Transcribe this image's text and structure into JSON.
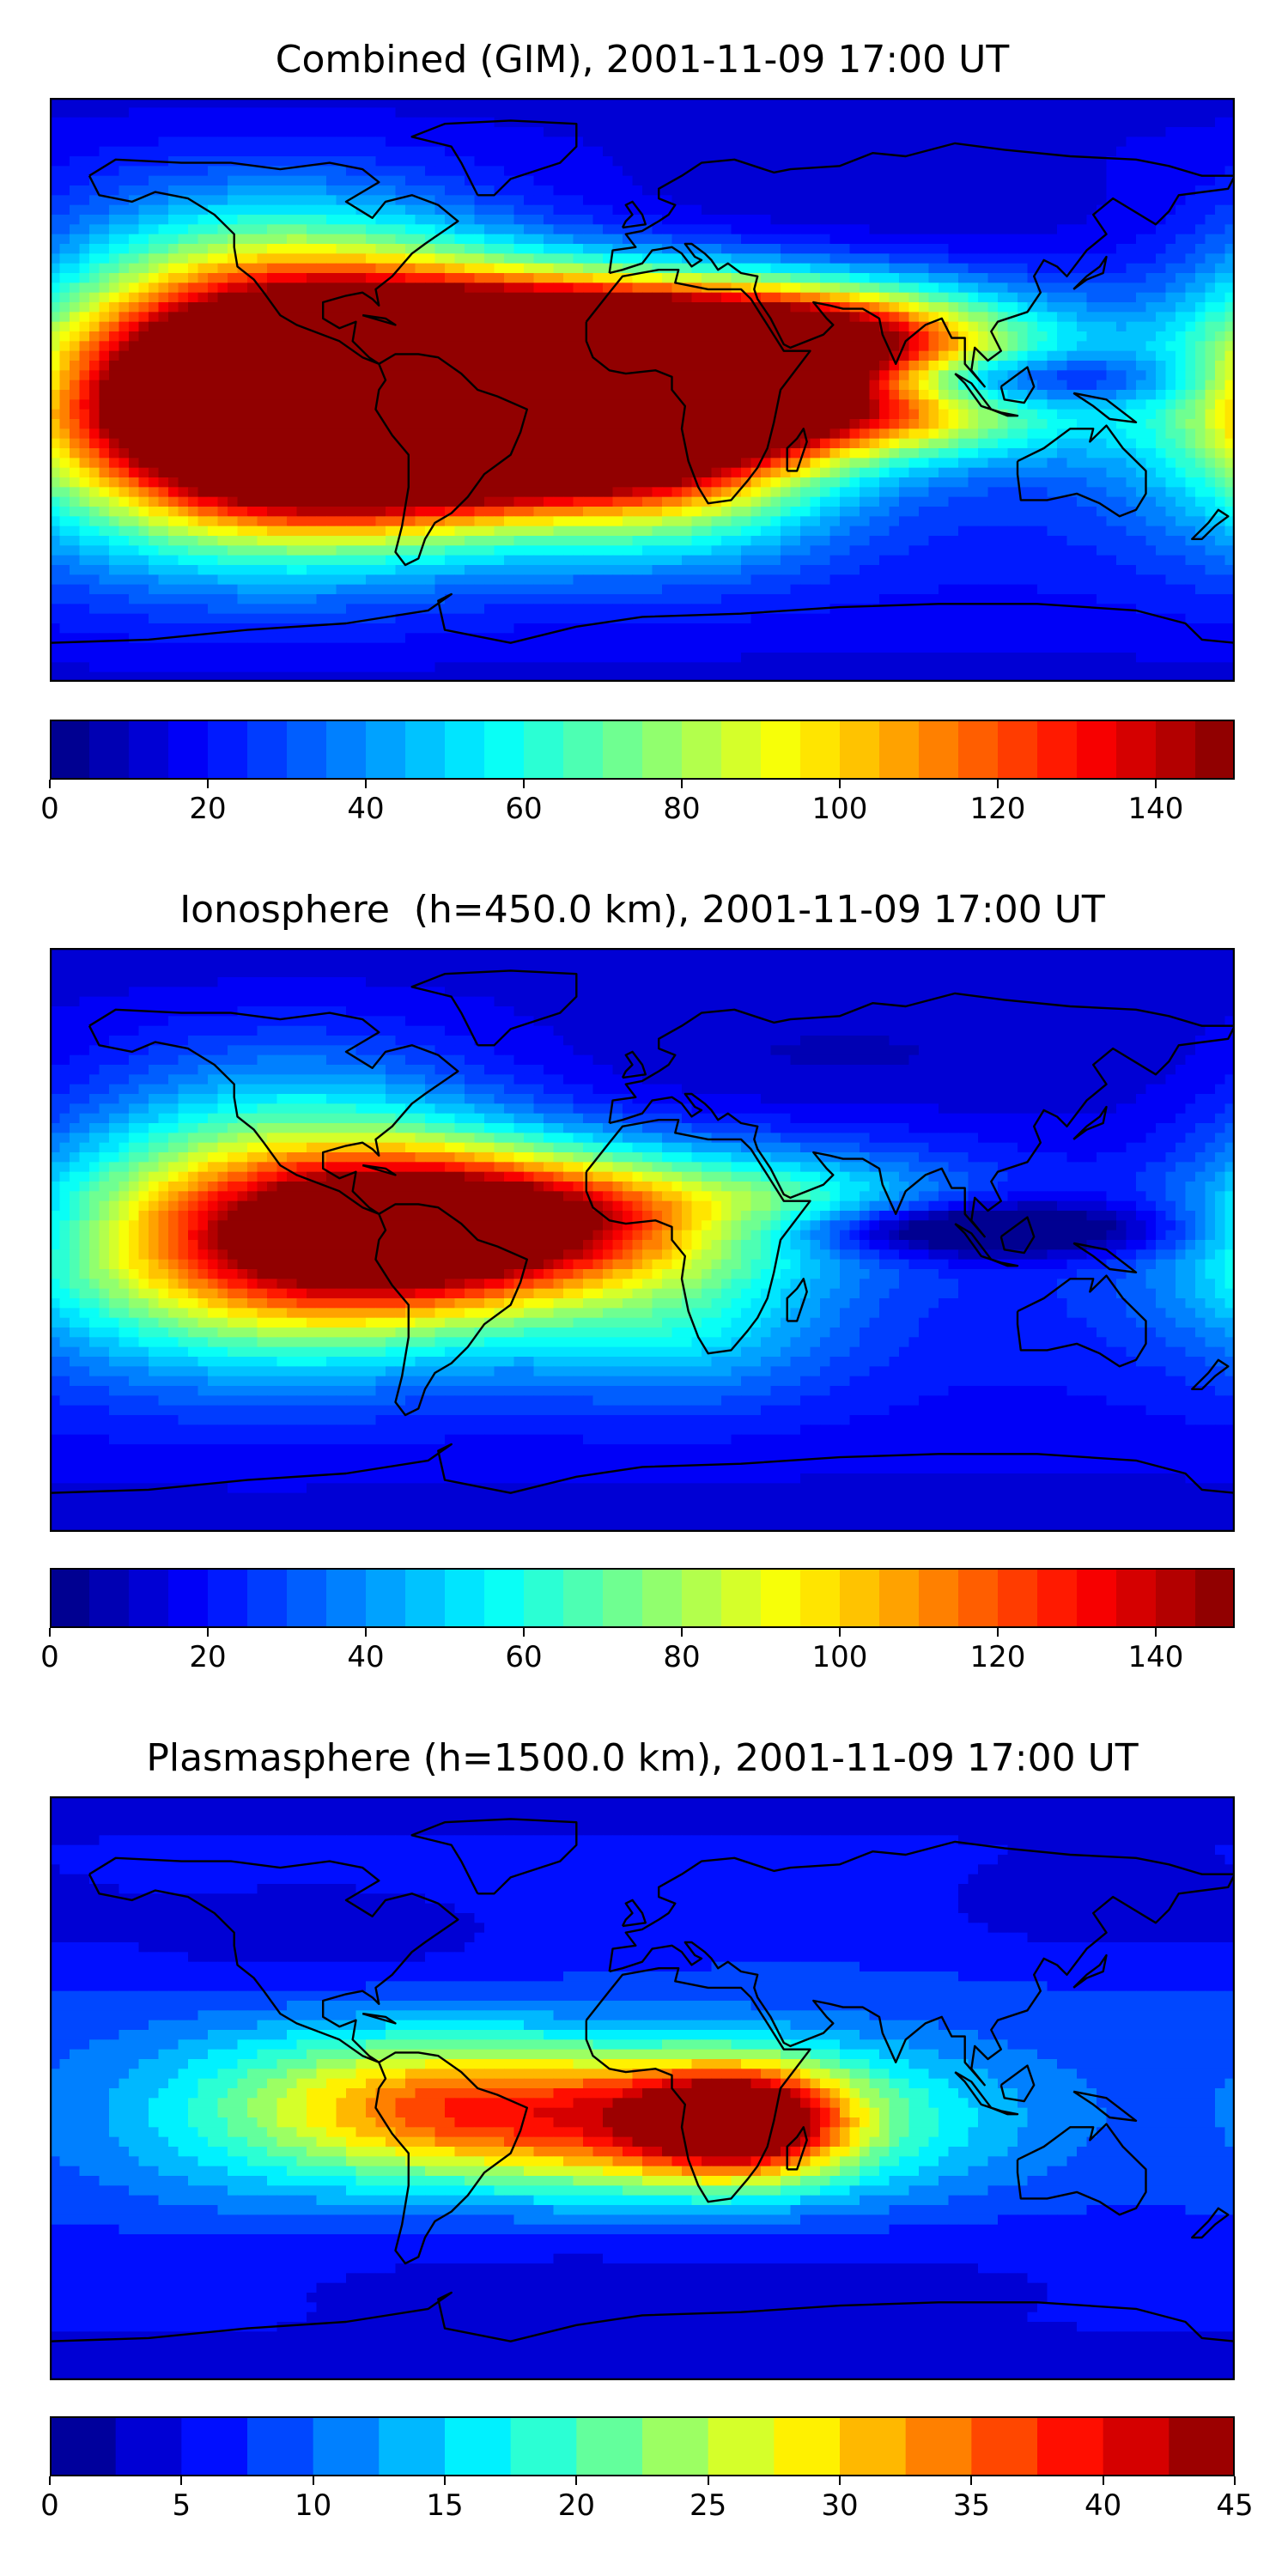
{
  "chart_data": [
    {
      "type": "heatmap",
      "title": "Combined (GIM), 2001-11-09 17:00 UT",
      "colormap": "jet",
      "colorbar": {
        "range": [
          0,
          150
        ],
        "levels": 30,
        "ticks": [
          0,
          20,
          40,
          60,
          80,
          100,
          120,
          140
        ],
        "tick_labels": [
          "0",
          "20",
          "40",
          "60",
          "80",
          "100",
          "120",
          "140"
        ]
      },
      "lon_range": [
        -180,
        180
      ],
      "lat_range": [
        -90,
        90
      ],
      "background_level": 25,
      "features": [
        {
          "lon": -75,
          "lat": -5,
          "value": 140,
          "slon": 45,
          "slat": 22
        },
        {
          "lon": -50,
          "lat": -2,
          "value": 115,
          "slon": 55,
          "slat": 20
        },
        {
          "lon": -20,
          "lat": 5,
          "value": 110,
          "slon": 40,
          "slat": 18
        },
        {
          "lon": 0,
          "lat": 4,
          "value": 80,
          "slon": 38,
          "slat": 16
        },
        {
          "lon": -105,
          "lat": -5,
          "value": 95,
          "slon": 45,
          "slat": 30
        },
        {
          "lon": -140,
          "lat": 0,
          "value": 60,
          "slon": 45,
          "slat": 32
        },
        {
          "lon": 40,
          "lat": 12,
          "value": 85,
          "slon": 35,
          "slat": 14
        },
        {
          "lon": 75,
          "lat": 15,
          "value": 60,
          "slon": 40,
          "slat": 12
        },
        {
          "lon": 75,
          "lat": -8,
          "value": 55,
          "slon": 40,
          "slat": 10
        },
        {
          "lon": 10,
          "lat": -25,
          "value": 60,
          "slon": 35,
          "slat": 20
        },
        {
          "lon": 95,
          "lat": 3,
          "value": -45,
          "slon": 45,
          "slat": 6
        },
        {
          "lon": -100,
          "lat": 45,
          "value": 20,
          "slon": 40,
          "slat": 18
        },
        {
          "lon": 60,
          "lat": 55,
          "value": -12,
          "slon": 80,
          "slat": 15
        },
        {
          "lon": 160,
          "lat": 25,
          "value": -10,
          "slon": 30,
          "slat": 20
        }
      ]
    },
    {
      "type": "heatmap",
      "title": "Ionosphere  (h=450.0 km), 2001-11-09 17:00 UT",
      "colormap": "jet",
      "colorbar": {
        "range": [
          0,
          150
        ],
        "levels": 30,
        "ticks": [
          0,
          20,
          40,
          60,
          80,
          100,
          120,
          140
        ],
        "tick_labels": [
          "0",
          "20",
          "40",
          "60",
          "80",
          "100",
          "120",
          "140"
        ]
      },
      "lon_range": [
        -180,
        180
      ],
      "lat_range": [
        -90,
        90
      ],
      "background_level": 22,
      "features": [
        {
          "lon": -75,
          "lat": 0,
          "value": 80,
          "slon": 40,
          "slat": 20
        },
        {
          "lon": -55,
          "lat": 5,
          "value": 50,
          "slon": 45,
          "slat": 15
        },
        {
          "lon": -20,
          "lat": 8,
          "value": 55,
          "slon": 40,
          "slat": 14
        },
        {
          "lon": -110,
          "lat": 0,
          "value": 55,
          "slon": 45,
          "slat": 28
        },
        {
          "lon": -150,
          "lat": 0,
          "value": 30,
          "slon": 40,
          "slat": 25
        },
        {
          "lon": 10,
          "lat": -25,
          "value": 35,
          "slon": 35,
          "slat": 18
        },
        {
          "lon": 50,
          "lat": 10,
          "value": 35,
          "slon": 35,
          "slat": 12
        },
        {
          "lon": 95,
          "lat": 3,
          "value": -45,
          "slon": 45,
          "slat": 6
        },
        {
          "lon": -100,
          "lat": 45,
          "value": 15,
          "slon": 40,
          "slat": 18
        },
        {
          "lon": 60,
          "lat": 55,
          "value": -10,
          "slon": 80,
          "slat": 15
        },
        {
          "lon": 160,
          "lat": 25,
          "value": -8,
          "slon": 30,
          "slat": 20
        }
      ]
    },
    {
      "type": "heatmap",
      "title": "Plasmasphere (h=1500.0 km), 2001-11-09 17:00 UT",
      "colormap": "jet",
      "colorbar": {
        "range": [
          0,
          45
        ],
        "levels": 18,
        "ticks": [
          0,
          5,
          10,
          15,
          20,
          25,
          30,
          35,
          40,
          45
        ],
        "tick_labels": [
          "0",
          "5",
          "10",
          "15",
          "20",
          "25",
          "30",
          "35",
          "40",
          "45"
        ]
      },
      "lon_range": [
        -180,
        180
      ],
      "lat_range": [
        -90,
        90
      ],
      "background_level": 8,
      "features": [
        {
          "lon": 30,
          "lat": -10,
          "value": 28,
          "slon": 22,
          "slat": 12
        },
        {
          "lon": 5,
          "lat": -12,
          "value": 15,
          "slon": 40,
          "slat": 16
        },
        {
          "lon": -70,
          "lat": -5,
          "value": 15,
          "slon": 40,
          "slat": 16
        },
        {
          "lon": -30,
          "lat": -8,
          "value": 12,
          "slon": 45,
          "slat": 16
        },
        {
          "lon": 70,
          "lat": -10,
          "value": 8,
          "slon": 40,
          "slat": 18
        },
        {
          "lon": -120,
          "lat": -10,
          "value": 6,
          "slon": 40,
          "slat": 22
        },
        {
          "lon": -100,
          "lat": 45,
          "value": -4,
          "slon": 50,
          "slat": 12
        },
        {
          "lon": 140,
          "lat": 55,
          "value": -4,
          "slon": 35,
          "slat": 10
        },
        {
          "lon": 0,
          "lat": -55,
          "value": -3,
          "slon": 120,
          "slat": 12
        }
      ]
    }
  ]
}
